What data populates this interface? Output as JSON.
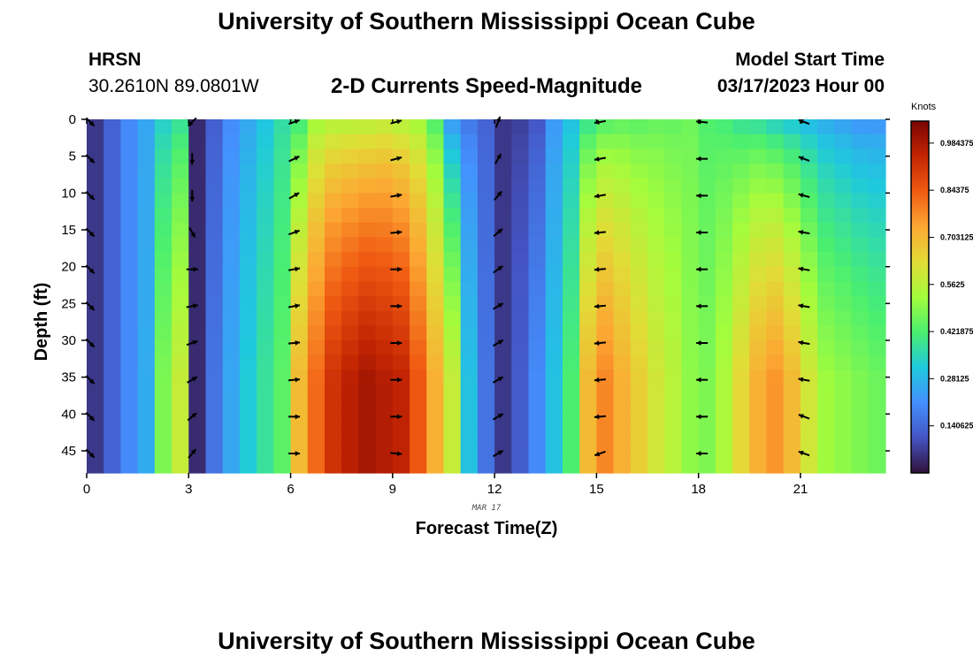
{
  "header": {
    "title": "University of Southern Mississippi Ocean Cube",
    "station": "HRSN",
    "coords": "30.2610N  89.0801W",
    "plot_title": "2-D Currents Speed-Magnitude",
    "model_label": "Model Start Time",
    "model_time": "03/17/2023 Hour 00"
  },
  "footer": {
    "title": "University of Southern Mississippi Ocean Cube"
  },
  "chart_data": {
    "type": "heatmap",
    "title": "2-D Currents Speed-Magnitude",
    "xlabel": "Forecast Time(Z)",
    "ylabel": "Depth (ft)",
    "date_label": "MAR 17",
    "xlim": [
      0,
      23.5
    ],
    "ylim": [
      0,
      48
    ],
    "x_ticks": [
      0,
      3,
      6,
      9,
      12,
      15,
      18,
      21
    ],
    "y_ticks": [
      0,
      5,
      10,
      15,
      20,
      25,
      30,
      35,
      40,
      45
    ],
    "hours": [
      0,
      0.5,
      1,
      1.5,
      2,
      2.5,
      3,
      3.5,
      4,
      4.5,
      5,
      5.5,
      6,
      6.5,
      7,
      7.5,
      8,
      8.5,
      9,
      9.5,
      10,
      10.5,
      11,
      11.5,
      12,
      12.5,
      13,
      13.5,
      14,
      14.5,
      15,
      15.5,
      16,
      16.5,
      17,
      17.5,
      18,
      18.5,
      19,
      19.5,
      20,
      20.5,
      21,
      21.5,
      22,
      22.5,
      23
    ],
    "speed_surface_knots": [
      0.06,
      0.13,
      0.2,
      0.25,
      0.32,
      0.36,
      0.04,
      0.12,
      0.2,
      0.25,
      0.3,
      0.36,
      0.38,
      0.5,
      0.52,
      0.52,
      0.52,
      0.54,
      0.52,
      0.5,
      0.4,
      0.2,
      0.16,
      0.13,
      0.06,
      0.07,
      0.1,
      0.22,
      0.29,
      0.36,
      0.4,
      0.42,
      0.42,
      0.44,
      0.44,
      0.46,
      0.42,
      0.4,
      0.36,
      0.34,
      0.3,
      0.28,
      0.26,
      0.24,
      0.22,
      0.2,
      0.2
    ],
    "speed_bottom_knots": [
      0.06,
      0.13,
      0.2,
      0.26,
      0.48,
      0.58,
      0.04,
      0.16,
      0.25,
      0.32,
      0.38,
      0.44,
      0.7,
      0.82,
      0.92,
      0.96,
      0.99,
      0.97,
      0.95,
      0.85,
      0.72,
      0.58,
      0.3,
      0.16,
      0.06,
      0.12,
      0.2,
      0.3,
      0.42,
      0.7,
      0.78,
      0.72,
      0.66,
      0.6,
      0.56,
      0.5,
      0.48,
      0.54,
      0.64,
      0.72,
      0.76,
      0.7,
      0.6,
      0.52,
      0.5,
      0.48,
      0.46
    ],
    "colorbar": {
      "label": "Knots",
      "min": 0,
      "max": 1.05,
      "ticks": [
        0.14062,
        0.28125,
        0.42187,
        0.5625,
        0.70312,
        0.84375,
        0.98437
      ],
      "tick_labels": [
        "0.140625",
        "0.28125",
        "0.421875",
        "0.5625",
        "0.703125",
        "0.84375",
        "0.984375"
      ]
    },
    "vectors": {
      "hours": [
        0,
        3,
        6,
        9,
        12,
        15,
        18,
        21
      ],
      "depths": [
        0,
        5,
        10,
        15,
        20,
        25,
        30,
        35,
        40,
        45
      ],
      "direction_deg": [
        [
          135,
          135,
          135,
          135,
          135,
          135,
          135,
          135,
          135,
          135
        ],
        [
          225,
          180,
          180,
          150,
          90,
          80,
          70,
          60,
          50,
          40
        ],
        [
          70,
          65,
          60,
          70,
          80,
          80,
          85,
          85,
          90,
          90
        ],
        [
          75,
          75,
          80,
          85,
          90,
          90,
          90,
          90,
          90,
          95
        ],
        [
          20,
          30,
          40,
          50,
          55,
          60,
          60,
          60,
          60,
          60
        ],
        [
          260,
          260,
          260,
          265,
          265,
          265,
          265,
          265,
          265,
          250
        ],
        [
          275,
          270,
          270,
          270,
          270,
          270,
          270,
          270,
          270,
          270
        ],
        [
          290,
          290,
          285,
          280,
          280,
          280,
          280,
          280,
          290,
          290
        ]
      ]
    }
  }
}
